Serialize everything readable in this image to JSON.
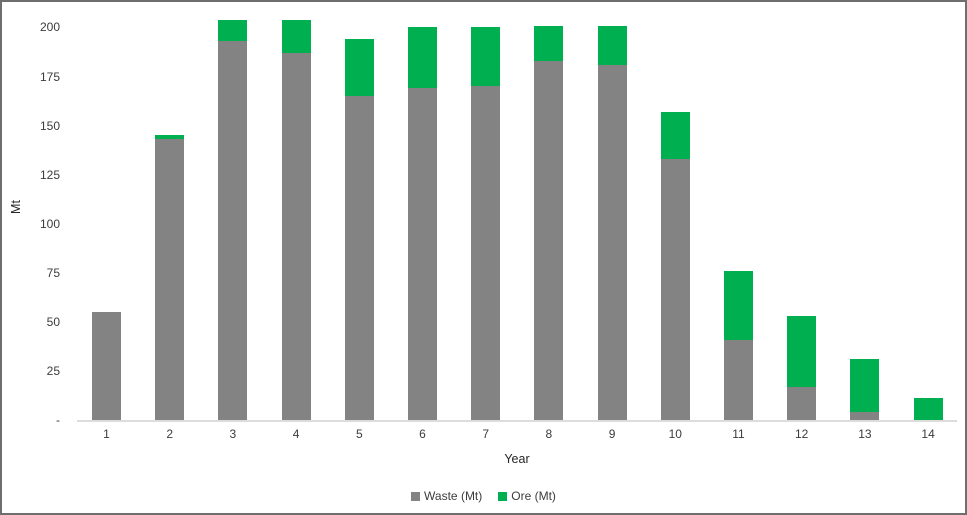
{
  "chart_data": {
    "type": "bar",
    "stacked": true,
    "title": "",
    "xlabel": "Year",
    "ylabel": "Mt",
    "categories": [
      "1",
      "2",
      "3",
      "4",
      "5",
      "6",
      "7",
      "8",
      "9",
      "10",
      "11",
      "12",
      "13",
      "14"
    ],
    "series": [
      {
        "name": "Waste (Mt)",
        "color": "#838383",
        "values": [
          55,
          143,
          193,
          187,
          165,
          169,
          170,
          183,
          181,
          133,
          41,
          17,
          4,
          0
        ]
      },
      {
        "name": "Ore (Mt)",
        "color": "#00b050",
        "values": [
          0,
          2,
          11,
          17,
          29,
          31,
          30,
          18,
          20,
          24,
          35,
          36,
          27,
          11
        ]
      }
    ],
    "y_ticks": [
      {
        "value": 0,
        "label": "-"
      },
      {
        "value": 25,
        "label": "25"
      },
      {
        "value": 50,
        "label": "50"
      },
      {
        "value": 75,
        "label": "75"
      },
      {
        "value": 100,
        "label": "100"
      },
      {
        "value": 125,
        "label": "125"
      },
      {
        "value": 150,
        "label": "150"
      },
      {
        "value": 175,
        "label": "175"
      },
      {
        "value": 200,
        "label": "200"
      }
    ],
    "ylim": [
      0,
      208
    ],
    "grid": false,
    "legend_position": "bottom",
    "axis_line_color": "#dcdcdc",
    "text_color": "#3c3c3c",
    "frame_border_color": "#6e6e6e"
  }
}
